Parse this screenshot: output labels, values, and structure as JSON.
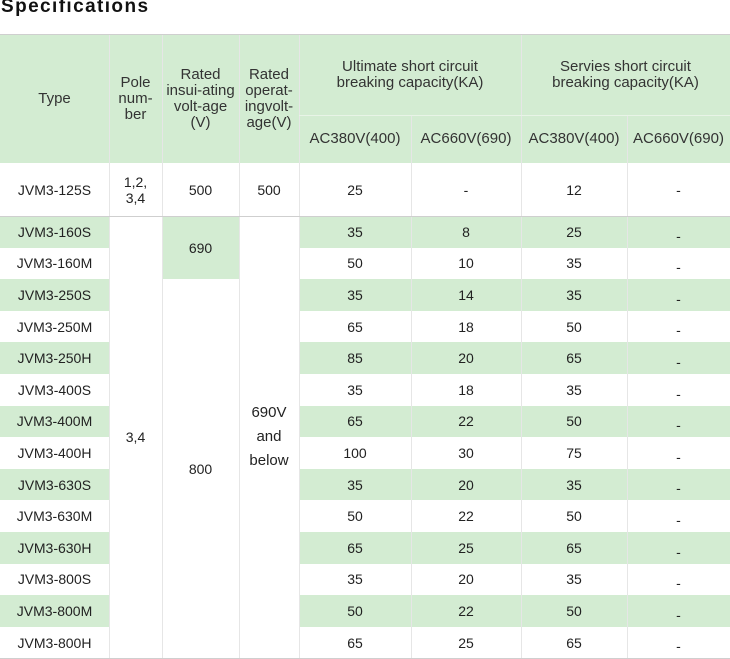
{
  "title": "Specifications",
  "headers": {
    "type": "Type",
    "poles": "Pole\nnum-\nber",
    "rated_insulating": "Rated\ninsui-ating\nvolt-age\n(V)",
    "rated_operating": "Rated\noperat-\ningvolt-\nage(V)",
    "ultimate_group": "Ultimate short circuit\nbreaking capacity(KA)",
    "service_group": "Servies short circuit\nbreaking capacity(KA)",
    "ult_ac380": "AC380V(400)",
    "ult_ac660": "AC660V(690)",
    "srv_ac380": "AC380V(400)",
    "srv_ac660": "AC660V(690)"
  },
  "merged": {
    "poles_first": "1,2,\n3,4",
    "poles_rest": "3,4",
    "insulating_first": "500",
    "insulating_690": "690",
    "insulating_800": "800",
    "operating_first": "500",
    "operating_rest": "690V\nand\nbelow"
  },
  "rows": [
    {
      "type": "JVM3-125S",
      "ult380": "25",
      "ult660": "-",
      "srv380": "12",
      "srv660": "-"
    },
    {
      "type": "JVM3-160S",
      "ult380": "35",
      "ult660": "8",
      "srv380": "25",
      "srv660": "-"
    },
    {
      "type": "JVM3-160M",
      "ult380": "50",
      "ult660": "10",
      "srv380": "35",
      "srv660": "-"
    },
    {
      "type": "JVM3-250S",
      "ult380": "35",
      "ult660": "14",
      "srv380": "35",
      "srv660": "-"
    },
    {
      "type": "JVM3-250M",
      "ult380": "65",
      "ult660": "18",
      "srv380": "50",
      "srv660": "-"
    },
    {
      "type": "JVM3-250H",
      "ult380": "85",
      "ult660": "20",
      "srv380": "65",
      "srv660": "-"
    },
    {
      "type": "JVM3-400S",
      "ult380": "35",
      "ult660": "18",
      "srv380": "35",
      "srv660": "-"
    },
    {
      "type": "JVM3-400M",
      "ult380": "65",
      "ult660": "22",
      "srv380": "50",
      "srv660": "-"
    },
    {
      "type": "JVM3-400H",
      "ult380": "100",
      "ult660": "30",
      "srv380": "75",
      "srv660": "-"
    },
    {
      "type": "JVM3-630S",
      "ult380": "35",
      "ult660": "20",
      "srv380": "35",
      "srv660": "-"
    },
    {
      "type": "JVM3-630M",
      "ult380": "50",
      "ult660": "22",
      "srv380": "50",
      "srv660": "-"
    },
    {
      "type": "JVM3-630H",
      "ult380": "65",
      "ult660": "25",
      "srv380": "65",
      "srv660": "-"
    },
    {
      "type": "JVM3-800S",
      "ult380": "35",
      "ult660": "20",
      "srv380": "35",
      "srv660": "-"
    },
    {
      "type": "JVM3-800M",
      "ult380": "50",
      "ult660": "22",
      "srv380": "50",
      "srv660": "-"
    },
    {
      "type": "JVM3-800H",
      "ult380": "65",
      "ult660": "25",
      "srv380": "65",
      "srv660": "-"
    }
  ],
  "colors": {
    "header_bg": "#d3ecd2",
    "stripe_bg": "#d3ecd2",
    "text": "#222222"
  }
}
